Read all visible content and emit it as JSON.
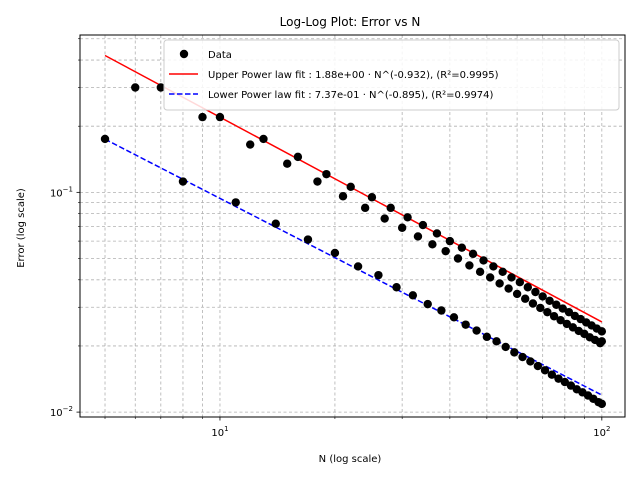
{
  "chart_data": {
    "type": "scatter",
    "title": "Log-Log Plot: Error vs N",
    "xlabel": "N (log scale)",
    "ylabel": "Error (log scale)",
    "xscale": "log",
    "yscale": "log",
    "xlim": [
      4.3,
      115
    ],
    "ylim": [
      0.0095,
      0.52
    ],
    "grid": true,
    "legend_location": "top-right",
    "x_ticks": [
      {
        "value": 10,
        "base": "10",
        "exp": "1"
      },
      {
        "value": 100,
        "base": "10",
        "exp": "2"
      }
    ],
    "y_ticks": [
      {
        "value": 0.01,
        "base": "10",
        "exp": "−2"
      },
      {
        "value": 0.1,
        "base": "10",
        "exp": "−1"
      }
    ],
    "legend": [
      {
        "label": "Data",
        "kind": "marker",
        "color": "#000000"
      },
      {
        "label": "Upper Power law fit : 1.88e+00 · N^(-0.932), (R²=0.9995)",
        "kind": "line",
        "color": "#ff0000",
        "dash": "solid"
      },
      {
        "label": "Lower Power law fit : 7.37e-01 · N^(-0.895), (R²=0.9974)",
        "kind": "line",
        "color": "#0000ff",
        "dash": "dashed"
      }
    ],
    "series": [
      {
        "name": "Data",
        "color": "#000000",
        "points": [
          [
            5,
            0.175
          ],
          [
            6,
            0.3
          ],
          [
            7,
            0.3
          ],
          [
            8,
            0.112
          ],
          [
            9,
            0.22
          ],
          [
            10,
            0.22
          ],
          [
            11,
            0.09
          ],
          [
            12,
            0.165
          ],
          [
            13,
            0.175
          ],
          [
            14,
            0.072
          ],
          [
            15,
            0.135
          ],
          [
            16,
            0.145
          ],
          [
            17,
            0.061
          ],
          [
            18,
            0.112
          ],
          [
            19,
            0.121
          ],
          [
            20,
            0.053
          ],
          [
            21,
            0.096
          ],
          [
            22,
            0.106
          ],
          [
            23,
            0.046
          ],
          [
            24,
            0.085
          ],
          [
            25,
            0.095
          ],
          [
            26,
            0.042
          ],
          [
            27,
            0.076
          ],
          [
            28,
            0.085
          ],
          [
            29,
            0.037
          ],
          [
            30,
            0.069
          ],
          [
            31,
            0.077
          ],
          [
            32,
            0.034
          ],
          [
            33,
            0.063
          ],
          [
            34,
            0.071
          ],
          [
            35,
            0.031
          ],
          [
            36,
            0.058
          ],
          [
            37,
            0.065
          ],
          [
            38,
            0.029
          ],
          [
            39,
            0.054
          ],
          [
            40,
            0.06
          ],
          [
            41,
            0.027
          ],
          [
            42,
            0.05
          ],
          [
            43,
            0.056
          ],
          [
            44,
            0.025
          ],
          [
            45,
            0.0465
          ],
          [
            46,
            0.0525
          ],
          [
            47,
            0.0235
          ],
          [
            48,
            0.0435
          ],
          [
            49,
            0.049
          ],
          [
            50,
            0.022
          ],
          [
            51,
            0.041
          ],
          [
            52,
            0.046
          ],
          [
            53,
            0.021
          ],
          [
            54,
            0.0385
          ],
          [
            55,
            0.0435
          ],
          [
            56,
            0.0198
          ],
          [
            57,
            0.0365
          ],
          [
            58,
            0.041
          ],
          [
            59,
            0.0187
          ],
          [
            60,
            0.0345
          ],
          [
            61,
            0.039
          ],
          [
            62,
            0.0178
          ],
          [
            63,
            0.0328
          ],
          [
            64,
            0.037
          ],
          [
            65,
            0.017
          ],
          [
            66,
            0.0312
          ],
          [
            67,
            0.0352
          ],
          [
            68,
            0.0162
          ],
          [
            69,
            0.0298
          ],
          [
            70,
            0.0336
          ],
          [
            71,
            0.0155
          ],
          [
            72,
            0.0285
          ],
          [
            73,
            0.0321
          ],
          [
            74,
            0.0148
          ],
          [
            75,
            0.0273
          ],
          [
            76,
            0.0308
          ],
          [
            77,
            0.0142
          ],
          [
            78,
            0.0262
          ],
          [
            79,
            0.0296
          ],
          [
            80,
            0.0137
          ],
          [
            81,
            0.0252
          ],
          [
            82,
            0.0285
          ],
          [
            83,
            0.0132
          ],
          [
            84,
            0.0243
          ],
          [
            85,
            0.0274
          ],
          [
            86,
            0.0127
          ],
          [
            87,
            0.0234
          ],
          [
            88,
            0.0265
          ],
          [
            89,
            0.0123
          ],
          [
            90,
            0.0227
          ],
          [
            91,
            0.0256
          ],
          [
            92,
            0.0119
          ],
          [
            93,
            0.0219
          ],
          [
            94,
            0.0248
          ],
          [
            95,
            0.0115
          ],
          [
            96,
            0.0213
          ],
          [
            97,
            0.024
          ],
          [
            98,
            0.0111
          ],
          [
            99,
            0.0206
          ],
          [
            100,
            0.0233
          ],
          [
            100,
            0.0109
          ],
          [
            100,
            0.021
          ]
        ]
      }
    ],
    "fits": [
      {
        "name": "Upper Power law fit",
        "a": 1.88,
        "b": -0.932,
        "r2": 0.9995,
        "x_range": [
          5,
          100
        ],
        "color": "#ff0000",
        "dash": "solid"
      },
      {
        "name": "Lower Power law fit",
        "a": 0.737,
        "b": -0.895,
        "r2": 0.9974,
        "x_range": [
          5,
          100
        ],
        "color": "#0000ff",
        "dash": "dashed"
      }
    ]
  }
}
